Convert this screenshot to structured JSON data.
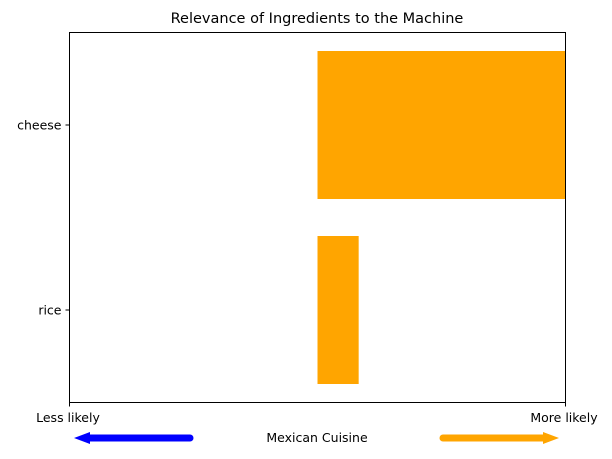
{
  "chart_data": {
    "type": "bar",
    "orientation": "horizontal",
    "title": "Relevance of Ingredients to the Machine",
    "categories": [
      "cheese",
      "rice"
    ],
    "values": [
      1.0,
      0.166
    ],
    "xlim": [
      -1,
      1
    ],
    "colors": {
      "positive": "#ffa500",
      "negative": "#0000ff"
    },
    "grid": false,
    "x_scale": {
      "left_label": "Less likely",
      "right_label": "More likely",
      "center_label": "Mexican Cuisine",
      "left_arrow_color": "#0000ff",
      "right_arrow_color": "#ffa500"
    }
  }
}
